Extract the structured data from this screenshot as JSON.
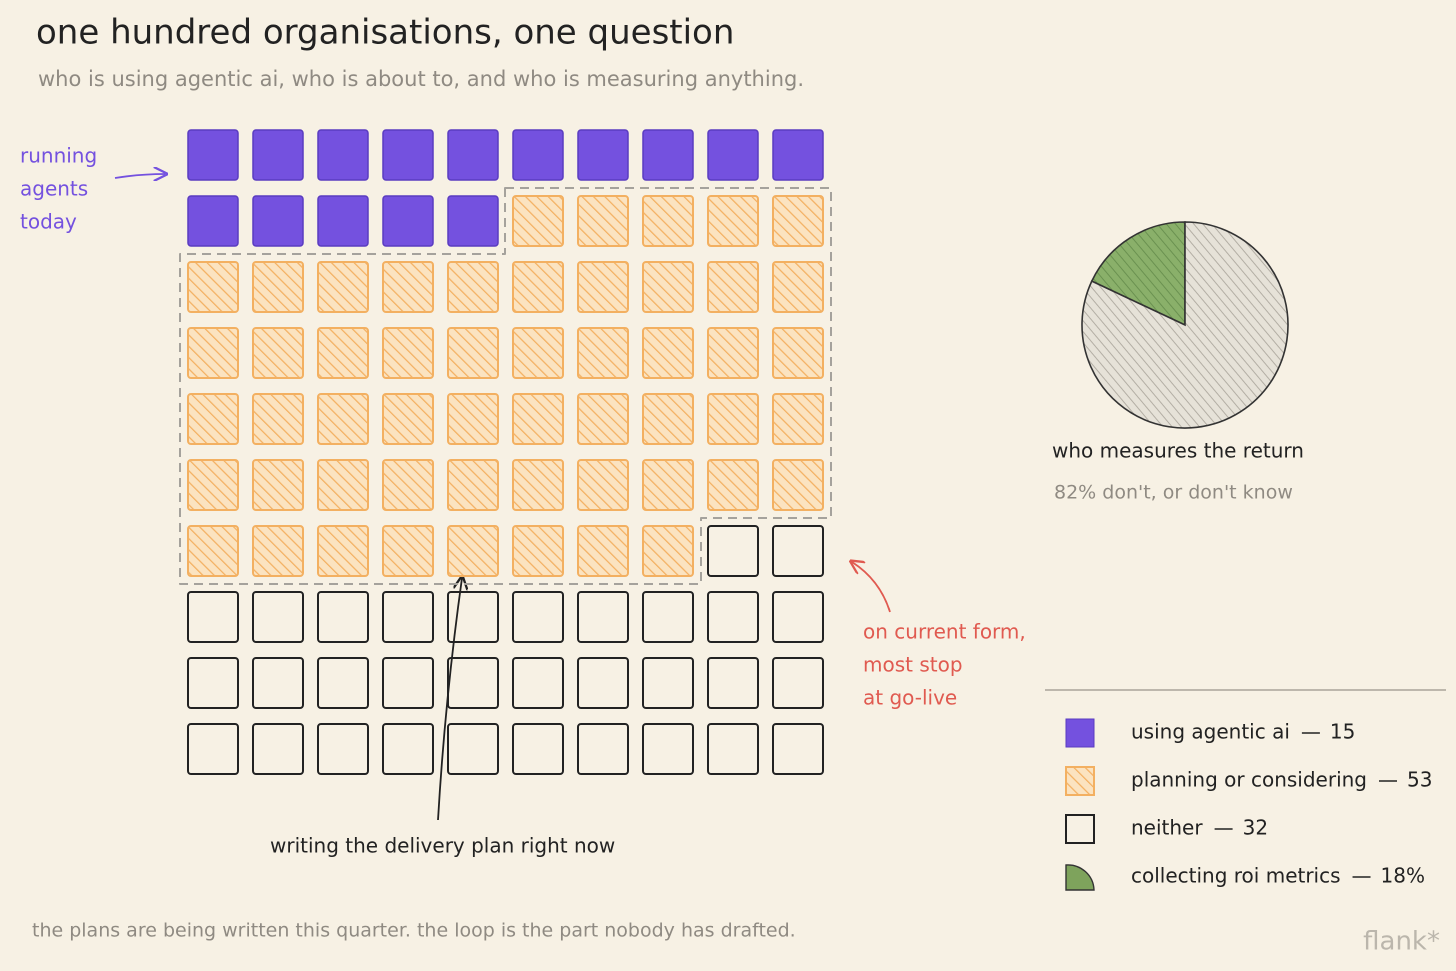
{
  "header": {
    "title": "one hundred organisations, one question",
    "subtitle": "who is using agentic ai, who is about to, and who is measuring anything."
  },
  "chart_data": [
    {
      "type": "waffle",
      "series": [
        {
          "name": "using agentic ai",
          "value": 15,
          "color": "#7451df"
        },
        {
          "name": "planning or considering",
          "value": 53,
          "color": "#f3b061"
        },
        {
          "name": "neither",
          "value": 32,
          "color": "#222222"
        }
      ]
    },
    {
      "type": "pie",
      "title": "who measures the return",
      "subtitle": "82% don't, or don't know",
      "categories": [
        "collecting roi metrics",
        null
      ],
      "values": [
        18,
        82
      ],
      "value_labels": [
        "18%",
        null
      ],
      "colors": [
        "#7ea35c",
        "#bdb9b0"
      ]
    }
  ],
  "annotations": {
    "running": [
      "running",
      "agents",
      "today"
    ],
    "go_live": [
      "on current form,",
      "most stop",
      "at go-live"
    ],
    "delivery": "writing the delivery plan right now"
  },
  "footer": {
    "note": "the plans are being written this quarter. the loop is the part nobody has drafted.",
    "brand": "flank*"
  }
}
